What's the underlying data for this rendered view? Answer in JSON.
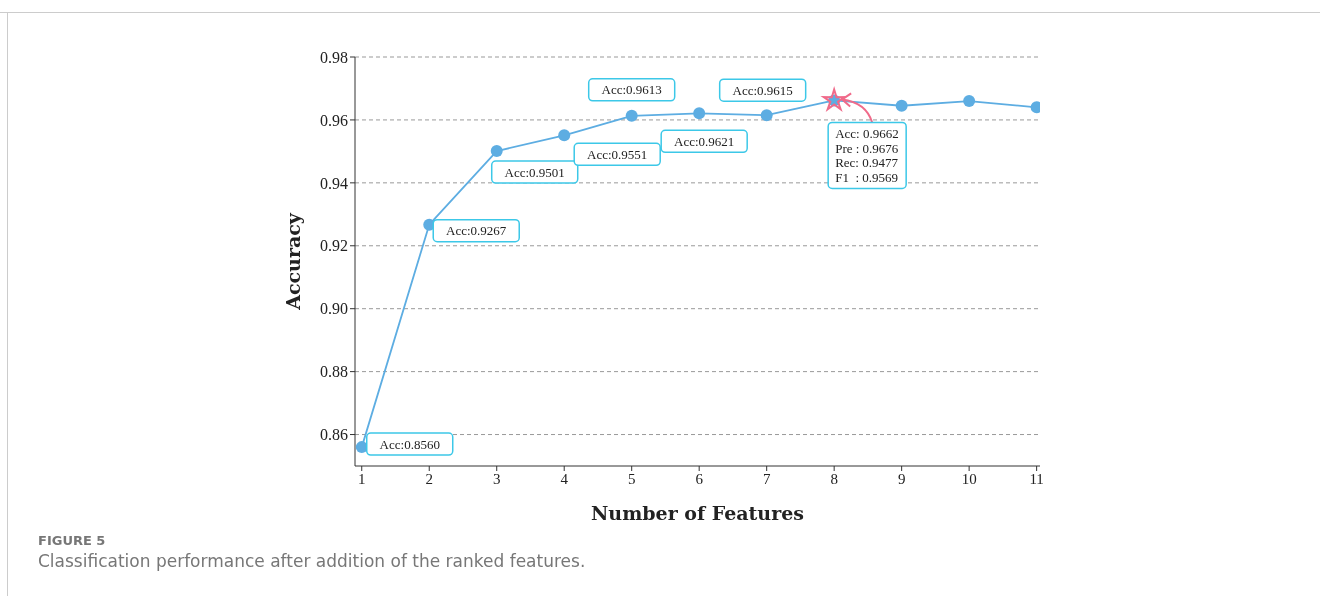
{
  "chart_data": {
    "type": "line",
    "xlabel": "Number of Features",
    "ylabel": "Accuracy",
    "x": [
      1,
      2,
      3,
      4,
      5,
      6,
      7,
      8,
      9,
      10,
      11
    ],
    "series": [
      {
        "color": "#5dade2",
        "marker": "circle",
        "values": [
          0.856,
          0.9267,
          0.9501,
          0.9551,
          0.9613,
          0.9621,
          0.9615,
          0.9662,
          0.9645,
          0.966,
          0.964
        ],
        "value_labels": [
          "Acc:0.8560",
          "Acc:0.9267",
          "Acc:0.9501",
          "Acc:0.9551",
          "Acc:0.9613",
          "Acc:0.9621",
          "Acc:0.9615",
          null,
          null,
          null,
          null
        ]
      },
      {
        "type": "scatter",
        "color": "#f06a8a",
        "marker": "star",
        "x": [
          8
        ],
        "values": [
          0.9662
        ]
      }
    ],
    "xlim": [
      0.9,
      11.05
    ],
    "xticks": [
      1,
      2,
      3,
      4,
      5,
      6,
      7,
      8,
      9,
      10,
      11
    ],
    "ylim": [
      0.85,
      0.98
    ],
    "yticks": [
      0.86,
      0.88,
      {
        "value": 0.9,
        "label": "0.90"
      },
      0.92,
      0.94,
      0.96,
      0.98
    ],
    "grid": "y",
    "line_style": "solid",
    "annotations": [
      {
        "text": "Acc: 0.9662\nPre : 0.9676\nRec: 0.9477\nF1  : 0.9569",
        "x": 8,
        "y": 0.9662
      },
      "FIGURE 5",
      "Classification performance after addition of the ranked features."
    ]
  }
}
